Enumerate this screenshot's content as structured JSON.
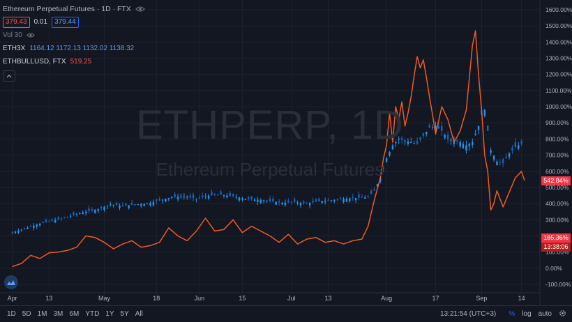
{
  "header": {
    "title": "Ethereum Perpetual Futures · 1D · FTX",
    "sell_price": "379.43",
    "spread": "0.01",
    "buy_price": "379.44",
    "vol_label": "Vol 30"
  },
  "series_legend": [
    {
      "name": "ETH3X",
      "ohlc": "1164.12  1172.13  1132.02  1138.32"
    },
    {
      "name": "ETHBULLUSD, FTX",
      "value": "519.25"
    }
  ],
  "watermark": {
    "symbol": "ETHPERP, 1D",
    "description": "Ethereum Perpetual Futures"
  },
  "tags": {
    "bull_current": "542.84%",
    "compare_current": "185.36%",
    "countdown": "13:38:06"
  },
  "bottom_bar": {
    "ranges": [
      "1D",
      "5D",
      "1M",
      "3M",
      "6M",
      "YTD",
      "1Y",
      "5Y",
      "All"
    ],
    "clock": "13:21:54 (UTC+3)",
    "percent": "%",
    "log": "log",
    "auto": "auto"
  },
  "colors": {
    "background": "#131722",
    "candle_up": "#2196f3",
    "candle_down": "#1565c0",
    "bull_line": "#f05a24",
    "tag_red": "#f23645",
    "tag_dark_red": "#b71c1c"
  },
  "icons": [
    "eye-icon",
    "chevron-up-icon",
    "tradingview-logo-icon",
    "settings-gear-icon"
  ],
  "chart_data": {
    "type": "line",
    "y_axis_unit": "%",
    "y_ticks": [
      "1600.00%",
      "1500.00%",
      "1400.00%",
      "1300.00%",
      "1200.00%",
      "1100.00%",
      "1000.00%",
      "900.00%",
      "800.00%",
      "700.00%",
      "600.00%",
      "500.00%",
      "400.00%",
      "300.00%",
      "200.00%",
      "100.00%",
      "0.00%",
      "-100.00%"
    ],
    "y_tick_values": [
      1600,
      1500,
      1400,
      1300,
      1200,
      1100,
      1000,
      900,
      800,
      700,
      600,
      500,
      400,
      300,
      200,
      100,
      0,
      -100
    ],
    "ylim": [
      -100,
      1600
    ],
    "x_ticks": [
      "Apr",
      "13",
      "May",
      "18",
      "Jun",
      "15",
      "Jul",
      "13",
      "Aug",
      "17",
      "Sep",
      "14"
    ],
    "x_tick_days": [
      0,
      12,
      30,
      47,
      61,
      75,
      91,
      103,
      122,
      138,
      153,
      166
    ],
    "series": [
      {
        "name": "ETH3X",
        "style": "candles",
        "x_days": [
          0,
          4,
          8,
          12,
          16,
          20,
          24,
          28,
          32,
          36,
          40,
          44,
          48,
          52,
          56,
          60,
          64,
          68,
          72,
          76,
          80,
          84,
          88,
          92,
          96,
          100,
          104,
          108,
          112,
          116,
          118,
          120,
          122,
          124,
          126,
          128,
          130,
          132,
          134,
          136,
          138,
          140,
          142,
          144,
          146,
          148,
          150,
          152,
          153,
          154,
          155,
          156,
          158,
          160,
          162,
          164,
          166
        ],
        "values": [
          220,
          245,
          270,
          290,
          305,
          330,
          350,
          365,
          395,
          385,
          395,
          400,
          420,
          440,
          445,
          430,
          450,
          455,
          445,
          430,
          425,
          415,
          405,
          410,
          400,
          415,
          420,
          430,
          435,
          440,
          480,
          560,
          680,
          760,
          800,
          790,
          780,
          770,
          820,
          870,
          880,
          850,
          800,
          790,
          780,
          760,
          780,
          880,
          950,
          980,
          850,
          730,
          660,
          650,
          710,
          750,
          770
        ]
      },
      {
        "name": "ETHBULLUSD, FTX",
        "style": "line",
        "x_days": [
          0,
          3,
          6,
          9,
          12,
          15,
          18,
          21,
          24,
          27,
          30,
          33,
          36,
          39,
          42,
          45,
          48,
          51,
          54,
          57,
          60,
          63,
          66,
          69,
          72,
          75,
          78,
          81,
          84,
          87,
          90,
          93,
          96,
          99,
          102,
          105,
          108,
          111,
          114,
          116,
          118,
          120,
          121,
          122,
          123,
          124,
          125,
          126,
          127,
          128,
          129,
          130,
          131,
          132,
          133,
          134,
          135,
          136,
          137,
          138,
          140,
          142,
          144,
          146,
          148,
          150,
          151,
          152,
          153,
          154,
          155,
          156,
          157,
          158,
          160,
          162,
          164,
          166,
          167
        ],
        "values": [
          10,
          30,
          80,
          60,
          95,
          100,
          110,
          130,
          200,
          190,
          160,
          120,
          150,
          170,
          130,
          140,
          160,
          250,
          200,
          170,
          230,
          310,
          230,
          240,
          300,
          220,
          260,
          230,
          200,
          160,
          210,
          150,
          180,
          190,
          160,
          170,
          150,
          170,
          180,
          260,
          420,
          560,
          680,
          760,
          960,
          780,
          1000,
          920,
          1030,
          880,
          960,
          1060,
          1190,
          1310,
          1240,
          1290,
          1180,
          1060,
          950,
          830,
          1000,
          920,
          780,
          850,
          980,
          1380,
          1470,
          1200,
          980,
          700,
          600,
          360,
          400,
          480,
          380,
          470,
          560,
          600,
          542.84
        ]
      }
    ]
  }
}
